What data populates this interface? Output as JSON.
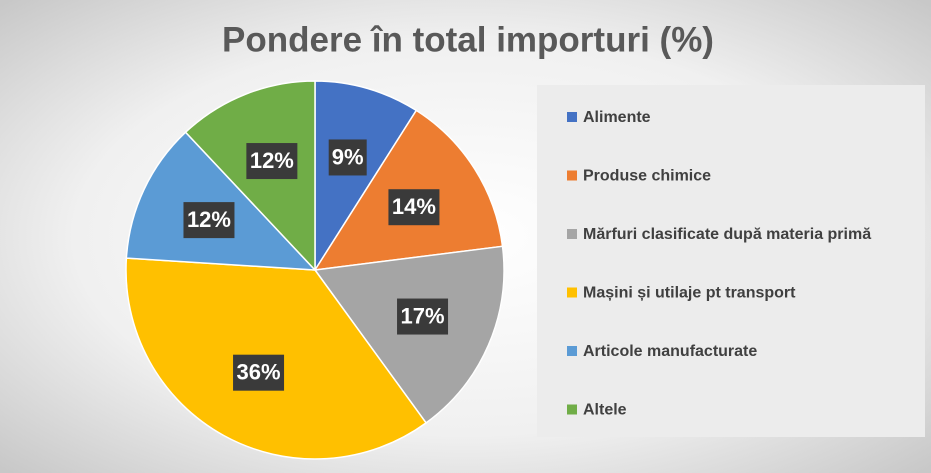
{
  "chart_data": {
    "type": "pie",
    "title": "Pondere în total importuri (%)",
    "categories": [
      "Alimente",
      "Produse chimice",
      "Mărfuri clasificate după materia primă",
      "Mașini și utilaje pt transport",
      "Articole manufacturate",
      "Altele"
    ],
    "values": [
      9,
      14,
      17,
      36,
      12,
      12
    ],
    "value_labels": [
      "9%",
      "14%",
      "17%",
      "36%",
      "12%",
      "12%"
    ],
    "colors": [
      "#4472c4",
      "#ed7d31",
      "#a5a5a5",
      "#ffc000",
      "#5b9bd5",
      "#70ad47"
    ],
    "legend": "right"
  }
}
